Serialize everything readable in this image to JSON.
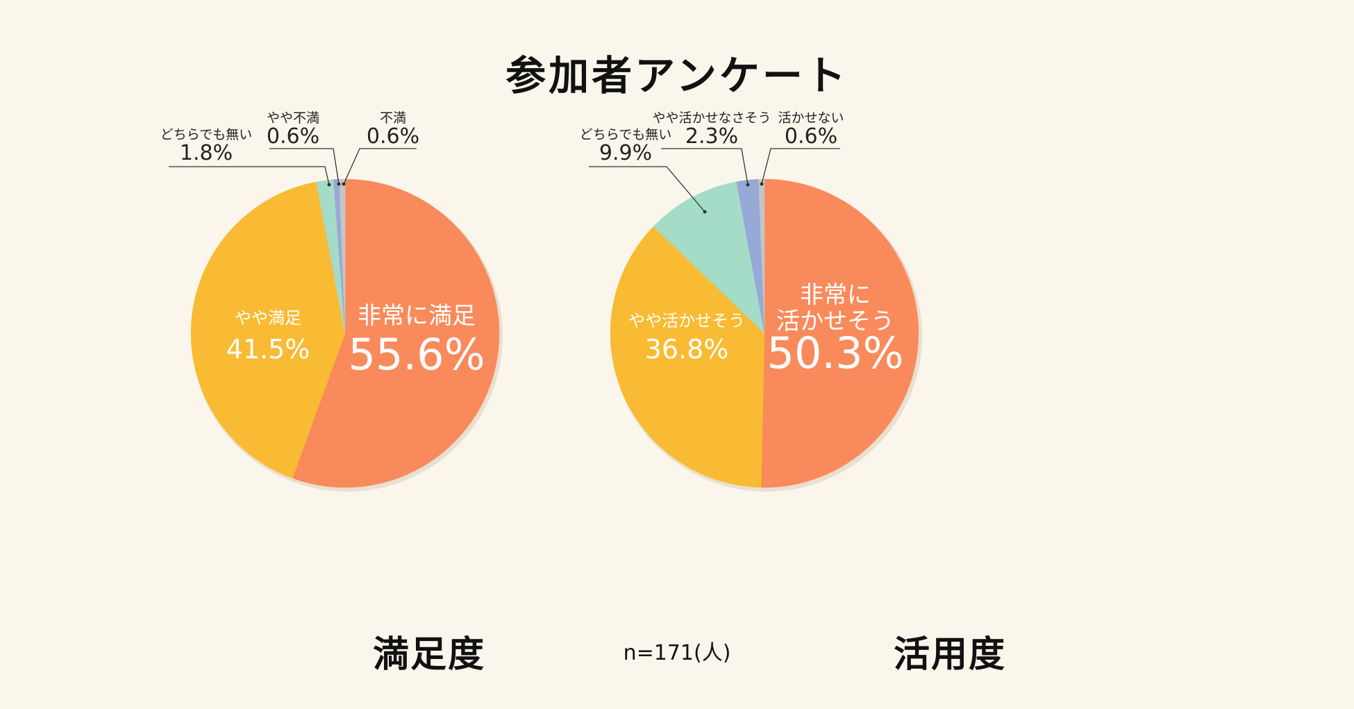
{
  "title": "参加者アンケート",
  "sample_size": "n=171(人)",
  "colors": {
    "background": "#fbf6ec",
    "orange": "#f98a5b",
    "yellow": "#f8bb33",
    "mint": "#a4dcc8",
    "blue": "#97a9d6",
    "gray": "#c5c5c5"
  },
  "chart_data": [
    {
      "type": "pie",
      "title": "満足度",
      "start": "12 o'clock",
      "direction": "clockwise",
      "slices": [
        {
          "label": "非常に満足",
          "value": 55.6,
          "value_text": "55.6%",
          "color": "#f98a5b",
          "label_position": "inside"
        },
        {
          "label": "やや満足",
          "value": 41.5,
          "value_text": "41.5%",
          "color": "#f8bb33",
          "label_position": "inside"
        },
        {
          "label": "どちらでも無い",
          "value": 1.8,
          "value_text": "1.8%",
          "color": "#a4dcc8",
          "label_position": "outside"
        },
        {
          "label": "やや不満",
          "value": 0.6,
          "value_text": "0.6%",
          "color": "#97a9d6",
          "label_position": "outside"
        },
        {
          "label": "不満",
          "value": 0.6,
          "value_text": "0.6%",
          "color": "#c5c5c5",
          "label_position": "outside"
        }
      ]
    },
    {
      "type": "pie",
      "title": "活用度",
      "start": "12 o'clock",
      "direction": "clockwise",
      "slices": [
        {
          "label": "非常に\n活かせそう",
          "value": 50.3,
          "value_text": "50.3%",
          "color": "#f98a5b",
          "label_position": "inside"
        },
        {
          "label": "やや活かせそう",
          "value": 36.8,
          "value_text": "36.8%",
          "color": "#f8bb33",
          "label_position": "inside"
        },
        {
          "label": "どちらでも無い",
          "value": 9.9,
          "value_text": "9.9%",
          "color": "#a4dcc8",
          "label_position": "outside"
        },
        {
          "label": "やや活かせなさそう",
          "value": 2.3,
          "value_text": "2.3%",
          "color": "#97a9d6",
          "label_position": "outside"
        },
        {
          "label": "活かせない",
          "value": 0.6,
          "value_text": "0.6%",
          "color": "#c5c5c5",
          "label_position": "outside"
        }
      ]
    }
  ]
}
